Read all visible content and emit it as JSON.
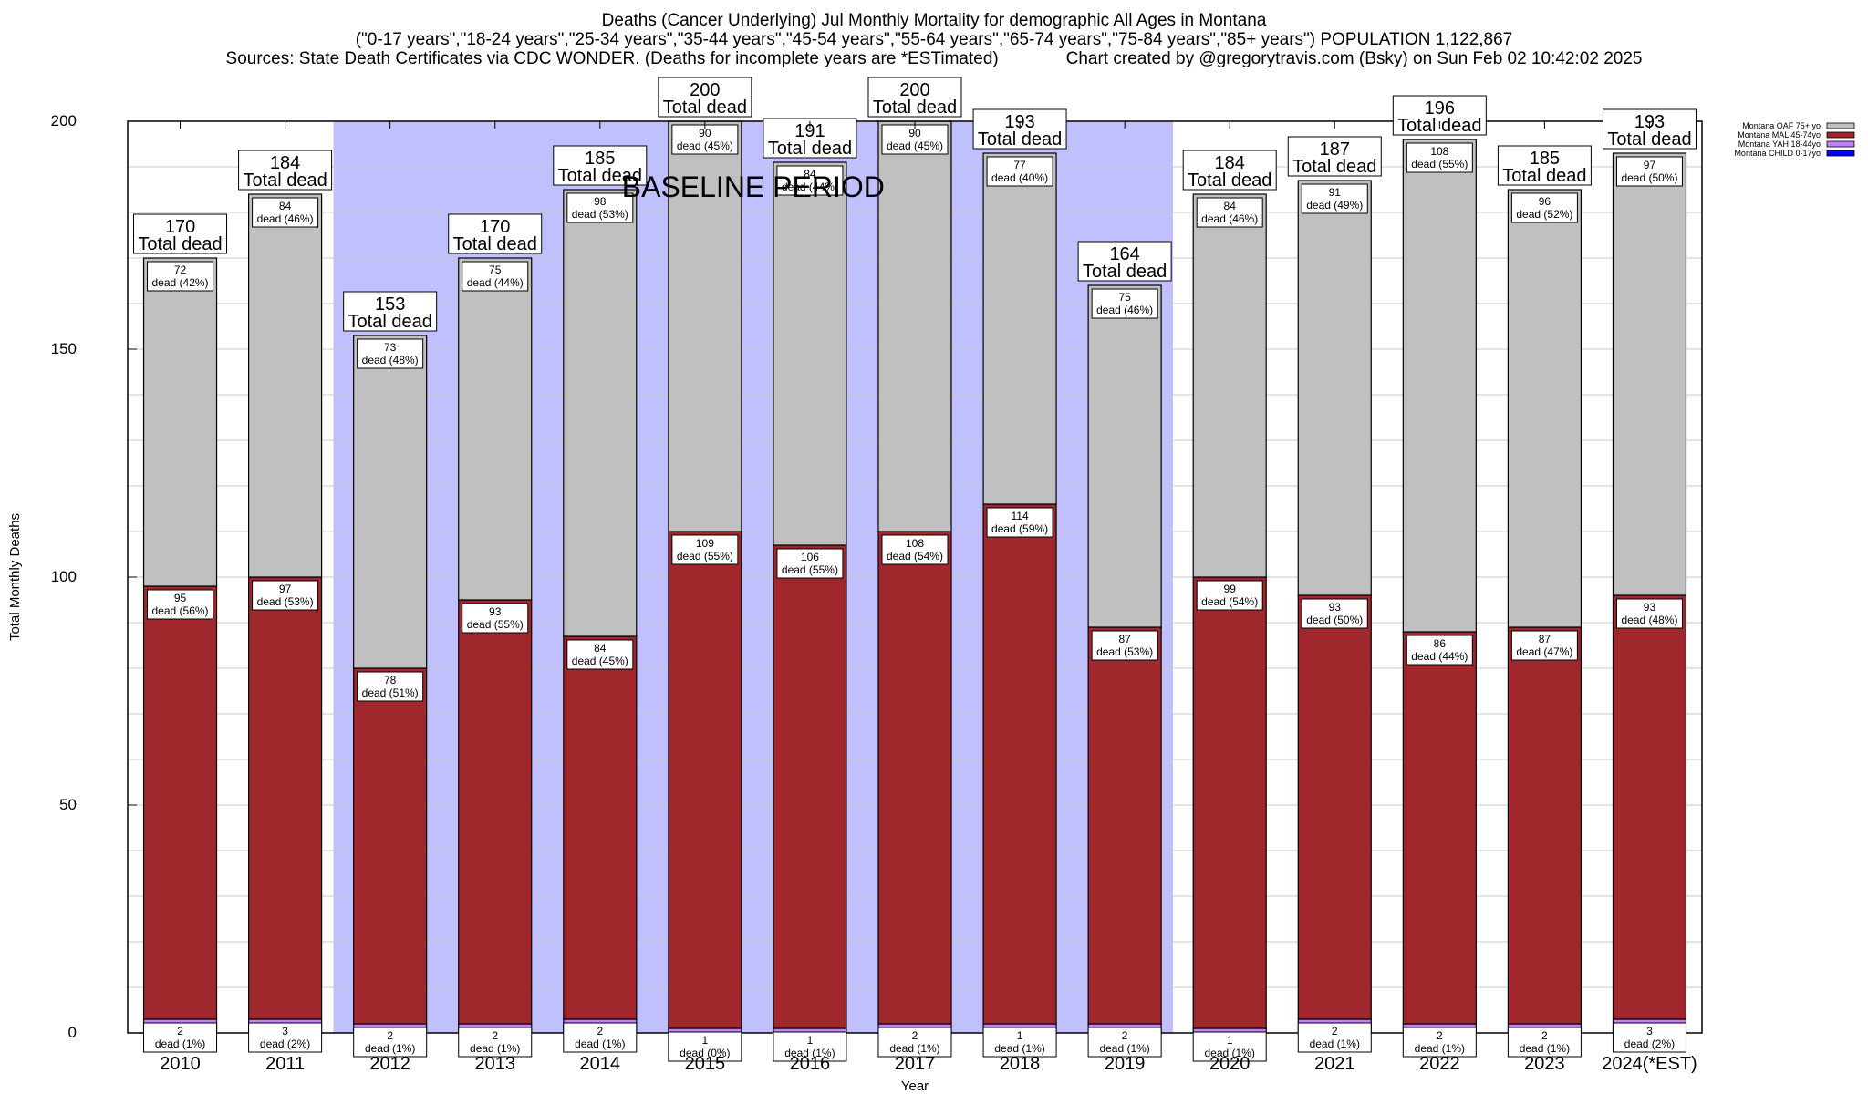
{
  "chart_data": {
    "type": "bar",
    "stacked": true,
    "title": "Deaths (Cancer Underlying) Jul Monthly Mortality for demographic All Ages in Montana",
    "subtitle": "(\"0-17 years\",\"18-24 years\",\"25-34 years\",\"35-44 years\",\"45-54 years\",\"55-64 years\",\"65-74 years\",\"75-84 years\",\"85+ years\") POPULATION 1,122,867",
    "sources": "Sources: State Death Certificates via CDC WONDER. (Deaths for incomplete years are *ESTimated)",
    "credit": "Chart created by @gregorytravis.com (Bsky) on Sun Feb 02 10:42:02 2025",
    "xlabel": "Year",
    "ylabel": "Total Monthly Deaths",
    "ylim": [
      0,
      200
    ],
    "yticks": [
      0,
      50,
      100,
      150,
      200
    ],
    "grid": true,
    "legend_position": "top-right",
    "categories": [
      "2010",
      "2011",
      "2012",
      "2013",
      "2014",
      "2015",
      "2016",
      "2017",
      "2018",
      "2019",
      "2020",
      "2021",
      "2022",
      "2023",
      "2024(*EST)"
    ],
    "series": [
      {
        "name": "Montana CHILD 0-17yo",
        "color": "#0000ff",
        "values": [
          1,
          0,
          0,
          0,
          1,
          0,
          0,
          0,
          1,
          0,
          0,
          1,
          0,
          0,
          0
        ]
      },
      {
        "name": "Montana YAH 18-44yo",
        "color": "#c080ff",
        "values": [
          2,
          3,
          2,
          2,
          2,
          1,
          1,
          2,
          1,
          2,
          1,
          2,
          2,
          2,
          3
        ],
        "pct_labels": [
          "1%",
          "2%",
          "1%",
          "1%",
          "1%",
          "0%",
          "1%",
          "1%",
          "1%",
          "1%",
          "1%",
          "1%",
          "1%",
          "1%",
          "2%"
        ]
      },
      {
        "name": "Montana MAL 45-74yo",
        "color": "#a0282c",
        "values": [
          95,
          97,
          78,
          93,
          84,
          109,
          106,
          108,
          114,
          87,
          99,
          93,
          86,
          87,
          93
        ],
        "pct_labels": [
          "56%",
          "53%",
          "51%",
          "55%",
          "45%",
          "55%",
          "55%",
          "54%",
          "59%",
          "53%",
          "54%",
          "50%",
          "44%",
          "47%",
          "48%"
        ]
      },
      {
        "name": "Montana OAF 75+ yo",
        "color": "#c0c0c0",
        "values": [
          72,
          84,
          73,
          75,
          98,
          90,
          84,
          90,
          77,
          75,
          84,
          91,
          108,
          96,
          97
        ],
        "pct_labels": [
          "42%",
          "46%",
          "48%",
          "44%",
          "53%",
          "45%",
          "44%",
          "45%",
          "40%",
          "46%",
          "46%",
          "49%",
          "55%",
          "52%",
          "50%"
        ]
      }
    ],
    "totals": [
      170,
      184,
      153,
      170,
      185,
      200,
      191,
      200,
      193,
      164,
      184,
      187,
      196,
      185,
      193
    ],
    "total_label_suffix": "Total dead",
    "segment_label_suffix": "dead",
    "annotation": {
      "text": "BASELINE PERIOD",
      "start": "2012",
      "end": "2019",
      "color": "#c0c0ff"
    }
  }
}
